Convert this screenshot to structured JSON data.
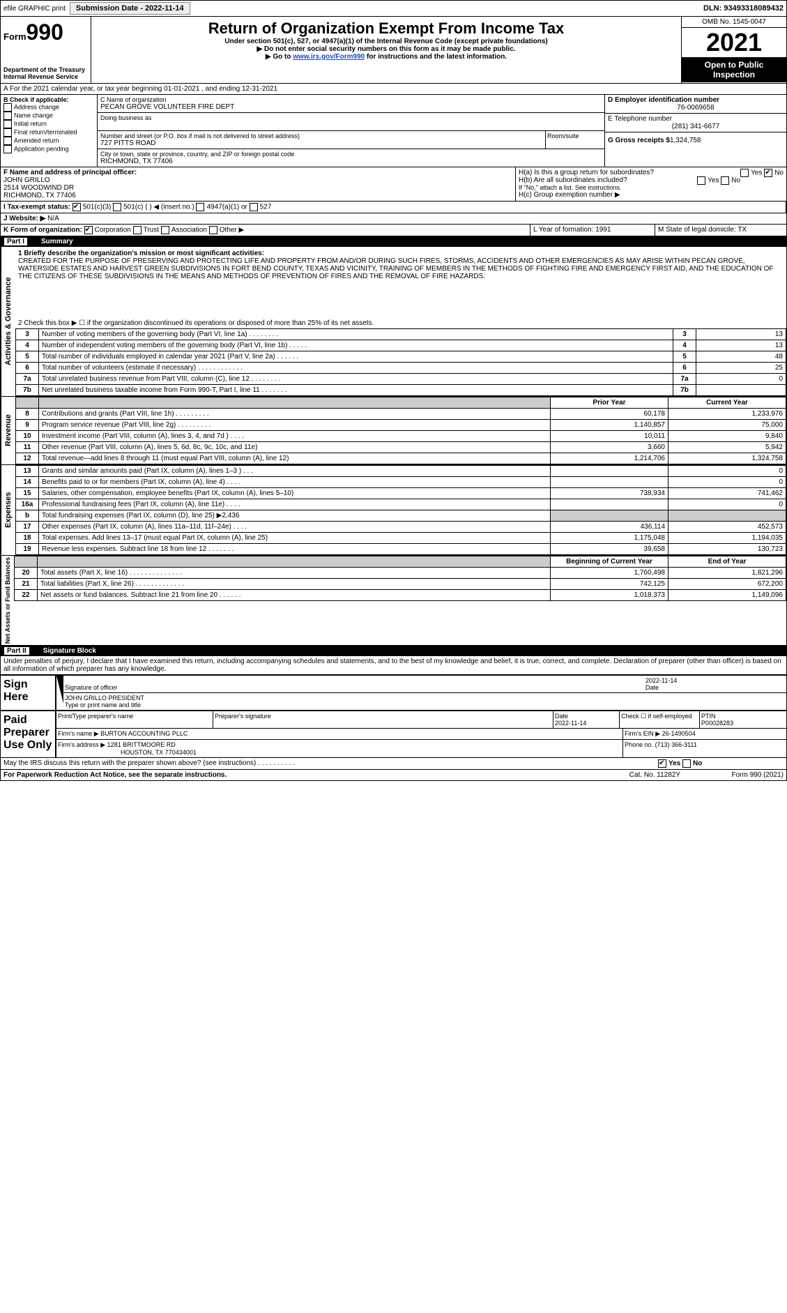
{
  "topbar": {
    "efile": "efile GRAPHIC print",
    "sub_label": "Submission Date - 2022-11-14",
    "dln": "DLN: 93493318089432"
  },
  "hdr": {
    "form_word": "Form",
    "form_num": "990",
    "title": "Return of Organization Exempt From Income Tax",
    "sub1": "Under section 501(c), 527, or 4947(a)(1) of the Internal Revenue Code (except private foundations)",
    "sub2": "▶ Do not enter social security numbers on this form as it may be made public.",
    "sub3": "▶ Go to ",
    "link": "www.irs.gov/Form990",
    "sub3b": " for instructions and the latest information.",
    "dept": "Department of the Treasury",
    "irs": "Internal Revenue Service",
    "omb": "OMB No. 1545-0047",
    "year": "2021",
    "open": "Open to Public Inspection"
  },
  "A": {
    "text": "A For the 2021 calendar year, or tax year beginning 01-01-2021   , and ending 12-31-2021"
  },
  "B": {
    "label": "B Check if applicable:",
    "addr": "Address change",
    "name": "Name change",
    "init": "Initial return",
    "final": "Final return/terminated",
    "amend": "Amended return",
    "app": "Application pending"
  },
  "C": {
    "label": "C Name of organization",
    "org": "PECAN GROVE VOLUNTEER FIRE DEPT",
    "dba": "Doing business as",
    "street_label": "Number and street (or P.O. box if mail is not delivered to street address)",
    "street": "727 PITTS ROAD",
    "room": "Room/suite",
    "city_label": "City or town, state or province, country, and ZIP or foreign postal code",
    "city": "RICHMOND, TX  77406"
  },
  "D": {
    "label": "D Employer identification number",
    "ein": "76-0069658"
  },
  "E": {
    "label": "E Telephone number",
    "phone": "(281) 341-6677"
  },
  "G": {
    "label": "G Gross receipts $",
    "amt": "1,324,758"
  },
  "F": {
    "label": "F  Name and address of principal officer:",
    "name": "JOHN GRILLO",
    "l1": "2514 WOODWIND DR",
    "l2": "RICHMOND, TX  77406"
  },
  "H": {
    "a": "H(a)  Is this a group return for subordinates?",
    "b": "H(b)  Are all subordinates included?",
    "b2": "If \"No,\" attach a list. See instructions.",
    "c": "H(c)  Group exemption number ▶",
    "yes": "Yes",
    "no": "No"
  },
  "I": {
    "label": "I    Tax-exempt status:",
    "c3": "501(c)(3)",
    "c": "501(c) (  ) ◀ (insert no.)",
    "a1": "4947(a)(1) or",
    "s527": "527"
  },
  "J": {
    "label": "J   Website: ▶",
    "val": "N/A"
  },
  "K": {
    "label": "K Form of organization:",
    "corp": "Corporation",
    "trust": "Trust",
    "assoc": "Association",
    "other": "Other ▶"
  },
  "L": {
    "label": "L Year of formation: 1991"
  },
  "M": {
    "label": "M State of legal domicile: TX"
  },
  "p1": {
    "label": "Part I",
    "title": "Summary"
  },
  "mission": {
    "q": "1   Briefly describe the organization's mission or most significant activities:",
    "text": "CREATED FOR THE PURPOSE OF PRESERVING AND PROTECTING LIFE AND PROPERTY FROM AND/OR DURING SUCH FIRES, STORMS, ACCIDENTS AND OTHER EMERGENCIES AS MAY ARISE WITHIN PECAN GROVE, WATERSIDE ESTATES AND HARVEST GREEN SUBDIVISIONS IN FORT BEND COUNTY, TEXAS AND VICINITY, TRAINING OF MEMBERS IN THE METHODS OF FIGHTING FIRE AND EMERGENCY FIRST AID, AND THE EDUCATION OF THE CITIZENS OF THESE SUBDIVISIONS IN THE MEANS AND METHODS OF PREVENTION OF FIRES AND THE REMOVAL OF FIRE HAZARDS."
  },
  "gov": {
    "tab": "Activities & Governance",
    "l2": "2   Check this box ▶ ☐  if the organization discontinued its operations or disposed of more than 25% of its net assets.",
    "rows": [
      {
        "n": "3",
        "t": "Number of voting members of the governing body (Part VI, line 1a)   .   .   .   .   .   .   .   .",
        "v": "13"
      },
      {
        "n": "4",
        "t": "Number of independent voting members of the governing body (Part VI, line 1b)   .   .   .   .   .",
        "v": "13"
      },
      {
        "n": "5",
        "t": "Total number of individuals employed in calendar year 2021 (Part V, line 2a)   .   .   .   .   .   .",
        "v": "48"
      },
      {
        "n": "6",
        "t": "Total number of volunteers (estimate if necessary)   .   .   .   .   .   .   .   .   .   .   .   .",
        "v": "25"
      },
      {
        "n": "7a",
        "t": "Total unrelated business revenue from Part VIII, column (C), line 12   .   .   .   .   .   .   .   .",
        "v": "0"
      },
      {
        "n": "7b",
        "t": "Net unrelated business taxable income from Form 990-T, Part I, line 11   .   .   .   .   .   .   .",
        "v": ""
      }
    ]
  },
  "rev": {
    "tab": "Revenue",
    "prior": "Prior Year",
    "curr": "Current Year",
    "rows": [
      {
        "n": "8",
        "t": "Contributions and grants (Part VIII, line 1h)   .   .   .   .   .   .   .   .   .",
        "p": "60,178",
        "c": "1,233,976"
      },
      {
        "n": "9",
        "t": "Program service revenue (Part VIII, line 2g)   .   .   .   .   .   .   .   .   .",
        "p": "1,140,857",
        "c": "75,000"
      },
      {
        "n": "10",
        "t": "Investment income (Part VIII, column (A), lines 3, 4, and 7d )   .   .   .   .",
        "p": "10,011",
        "c": "9,840"
      },
      {
        "n": "11",
        "t": "Other revenue (Part VIII, column (A), lines 5, 6d, 8c, 9c, 10c, and 11e)",
        "p": "3,660",
        "c": "5,942"
      },
      {
        "n": "12",
        "t": "Total revenue—add lines 8 through 11 (must equal Part VIII, column (A), line 12)",
        "p": "1,214,706",
        "c": "1,324,758"
      }
    ]
  },
  "exp": {
    "tab": "Expenses",
    "rows": [
      {
        "n": "13",
        "t": "Grants and similar amounts paid (Part IX, column (A), lines 1–3 )   .   .   .",
        "p": "",
        "c": "0"
      },
      {
        "n": "14",
        "t": "Benefits paid to or for members (Part IX, column (A), line 4)   .   .   .   .",
        "p": "",
        "c": "0"
      },
      {
        "n": "15",
        "t": "Salaries, other compensation, employee benefits (Part IX, column (A), lines 5–10)",
        "p": "738,934",
        "c": "741,462"
      },
      {
        "n": "16a",
        "t": "Professional fundraising fees (Part IX, column (A), line 11e)   .   .   .   .",
        "p": "",
        "c": "0"
      },
      {
        "n": "b",
        "t": "Total fundraising expenses (Part IX, column (D), line 25) ▶2,436",
        "p": "shade",
        "c": "shade"
      },
      {
        "n": "17",
        "t": "Other expenses (Part IX, column (A), lines 11a–11d, 11f–24e)   .   .   .   .",
        "p": "436,114",
        "c": "452,573"
      },
      {
        "n": "18",
        "t": "Total expenses. Add lines 13–17 (must equal Part IX, column (A), line 25)",
        "p": "1,175,048",
        "c": "1,194,035"
      },
      {
        "n": "19",
        "t": "Revenue less expenses. Subtract line 18 from line 12   .   .   .   .   .   .   .",
        "p": "39,658",
        "c": "130,723"
      }
    ]
  },
  "net": {
    "tab": "Net Assets or Fund Balances",
    "beg": "Beginning of Current Year",
    "end": "End of Year",
    "rows": [
      {
        "n": "20",
        "t": "Total assets (Part X, line 16)   .   .   .   .   .   .   .   .   .   .   .   .   .   .",
        "p": "1,760,498",
        "c": "1,821,296"
      },
      {
        "n": "21",
        "t": "Total liabilities (Part X, line 26)   .   .   .   .   .   .   .   .   .   .   .   .   .",
        "p": "742,125",
        "c": "672,200"
      },
      {
        "n": "22",
        "t": "Net assets or fund balances. Subtract line 21 from line 20   .   .   .   .   .   .",
        "p": "1,018,373",
        "c": "1,149,096"
      }
    ]
  },
  "p2": {
    "label": "Part II",
    "title": "Signature Block",
    "perjury": "Under penalties of perjury, I declare that I have examined this return, including accompanying schedules and statements, and to the best of my knowledge and belief, it is true, correct, and complete. Declaration of preparer (other than officer) is based on all information of which preparer has any knowledge."
  },
  "sign": {
    "here": "Sign Here",
    "sig": "Signature of officer",
    "date": "2022-11-14",
    "date_l": "Date",
    "name": "JOHN GRILLO  PRESIDENT",
    "name_l": "Type or print name and title"
  },
  "paid": {
    "here": "Paid Preparer Use Only",
    "pn": "Print/Type preparer's name",
    "ps": "Preparer's signature",
    "d": "Date",
    "dv": "2022-11-14",
    "chk": "Check ☐ if self-employed",
    "ptin": "PTIN",
    "ptinv": "P00028283",
    "fn": "Firm's name    ▶",
    "fnv": "BURTON ACCOUNTING PLLC",
    "fein": "Firm's EIN ▶",
    "feinv": "26-1490504",
    "fa": "Firm's address ▶",
    "fav": "1281 BRITTMOORE RD",
    "fav2": "HOUSTON, TX  770434001",
    "ph": "Phone no.",
    "phv": "(713) 366-3111"
  },
  "foot": {
    "q": "May the IRS discuss this return with the preparer shown above? (see instructions)   .   .   .   .   .   .   .   .   .   .",
    "yes": "Yes",
    "no": "No",
    "pra": "For Paperwork Reduction Act Notice, see the separate instructions.",
    "cat": "Cat. No. 11282Y",
    "form": "Form 990 (2021)"
  }
}
